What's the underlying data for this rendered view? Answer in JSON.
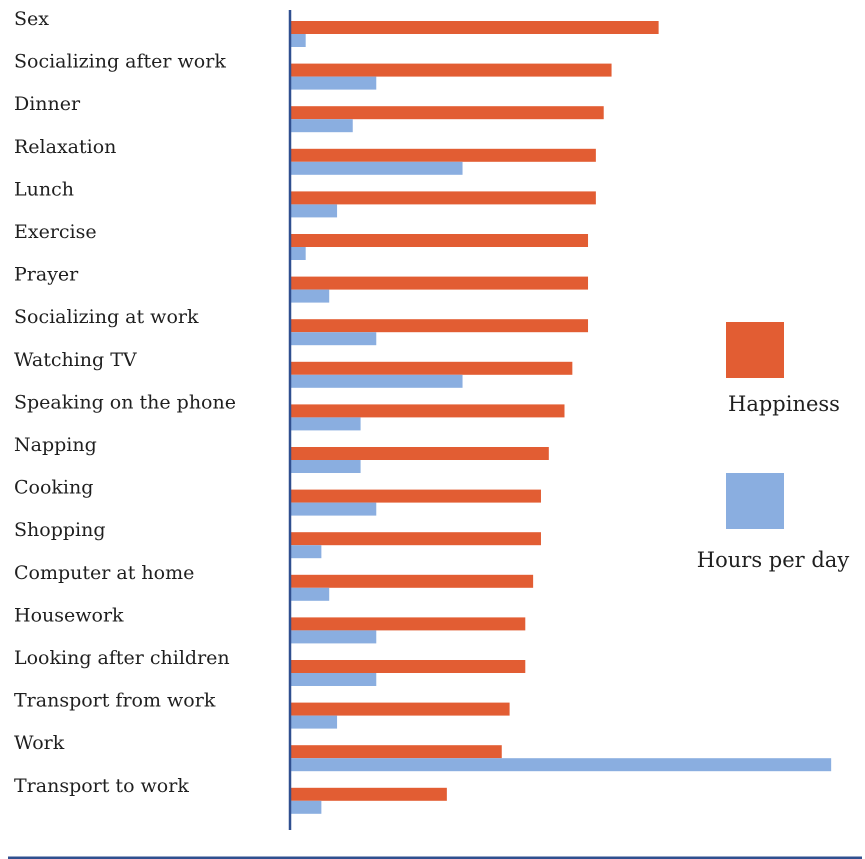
{
  "chart_data": {
    "type": "bar",
    "orientation": "horizontal",
    "categories": [
      "Sex",
      "Socializing after work",
      "Dinner",
      "Relaxation",
      "Lunch",
      "Exercise",
      "Prayer",
      "Socializing at work",
      "Watching TV",
      "Speaking on the phone",
      "Napping",
      "Cooking",
      "Shopping",
      "Computer at home",
      "Housework",
      "Looking after children",
      "Transport from work",
      "Work",
      "Transport to work"
    ],
    "series": [
      {
        "name": "Happiness",
        "color": "#e25d33",
        "values": [
          4.7,
          4.1,
          4.0,
          3.9,
          3.9,
          3.8,
          3.8,
          3.8,
          3.6,
          3.5,
          3.3,
          3.2,
          3.2,
          3.1,
          3.0,
          3.0,
          2.8,
          2.7,
          2.0
        ]
      },
      {
        "name": "Hours per day",
        "color": "#8aaee0",
        "values": [
          0.2,
          1.1,
          0.8,
          2.2,
          0.6,
          0.2,
          0.5,
          1.1,
          2.2,
          0.9,
          0.9,
          1.1,
          0.4,
          0.5,
          1.1,
          1.1,
          0.6,
          6.9,
          0.4
        ]
      }
    ],
    "xlim": [
      0,
      7
    ],
    "axis_color": "#2f4f8f",
    "legend_position": "right",
    "grid": false
  }
}
